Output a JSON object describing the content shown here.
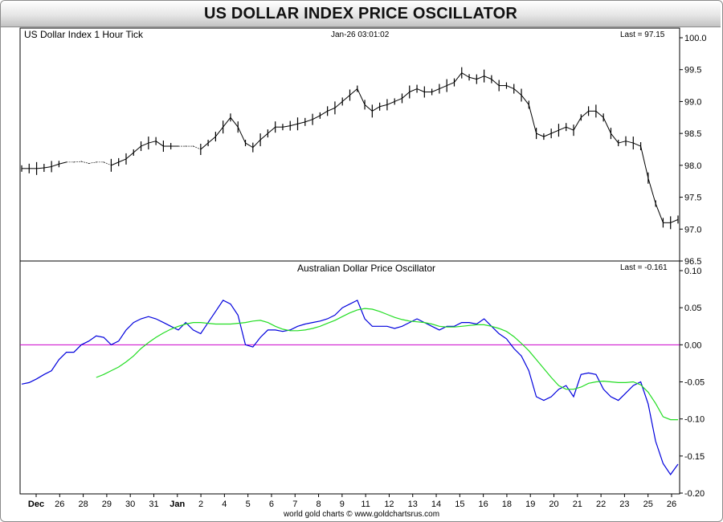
{
  "title": "US DOLLAR INDEX PRICE OSCILLATOR",
  "footer": "world gold charts © www.goldchartsrus.com",
  "colors": {
    "price_bars": "#000000",
    "oscillator": "#0000dd",
    "signal": "#22dd22",
    "zero_line": "#cc00cc",
    "panel_border": "#000000",
    "page_border": "#8a8a8a"
  },
  "chart_data": {
    "type": "line",
    "x_ticks": [
      "Dec",
      "26",
      "28",
      "29",
      "30",
      "31",
      "Jan",
      "2",
      "4",
      "5",
      "6",
      "7",
      "8",
      "9",
      "11",
      "12",
      "13",
      "14",
      "15",
      "16",
      "18",
      "19",
      "20",
      "21",
      "22",
      "23",
      "25",
      "26"
    ],
    "x_tick_bold": [
      "Dec",
      "Jan"
    ],
    "panels": [
      {
        "name": "price",
        "type": "bar",
        "label": "US Dollar Index 1 Hour Tick",
        "date_label": "Jan-26  03:01:02",
        "last_label": "Last = 97.15",
        "ylim": [
          96.5,
          100.0
        ],
        "yticks": [
          "100.0",
          "99.5",
          "99.0",
          "98.5",
          "98.0",
          "97.5",
          "97.0",
          "96.5"
        ],
        "series": [
          {
            "values": [
              97.95,
              97.95,
              97.95,
              97.96,
              97.98,
              98.02,
              98.05,
              98.05,
              98.06,
              98.03,
              98.05,
              98.05,
              98.0,
              98.05,
              98.1,
              98.2,
              98.3,
              98.35,
              98.38,
              98.3,
              98.3,
              98.3,
              98.3,
              98.3,
              98.25,
              98.35,
              98.45,
              98.6,
              98.75,
              98.6,
              98.35,
              98.28,
              98.4,
              98.5,
              98.6,
              98.6,
              98.62,
              98.65,
              98.68,
              98.72,
              98.78,
              98.85,
              98.9,
              99.0,
              99.1,
              99.2,
              98.95,
              98.85,
              98.92,
              98.95,
              99.0,
              99.05,
              99.15,
              99.2,
              99.15,
              99.15,
              99.2,
              99.25,
              99.3,
              99.45,
              99.38,
              99.35,
              99.4,
              99.35,
              99.25,
              99.25,
              99.2,
              99.1,
              98.95,
              98.5,
              98.45,
              98.5,
              98.55,
              98.6,
              98.55,
              98.75,
              98.85,
              98.85,
              98.75,
              98.5,
              98.35,
              98.38,
              98.35,
              98.3,
              97.8,
              97.4,
              97.1,
              97.1,
              97.15
            ]
          }
        ]
      },
      {
        "name": "oscillator",
        "type": "line",
        "label": "Australian Dollar Price Oscillator",
        "last_label": "Last = -0.161",
        "ylim": [
          -0.2,
          0.1
        ],
        "yticks": [
          "0.10",
          "0.05",
          "0.00",
          "-0.05",
          "-0.10",
          "-0.15",
          "-0.20"
        ],
        "series": [
          {
            "values": [
              -0.053,
              -0.051,
              -0.046,
              -0.04,
              -0.035,
              -0.02,
              -0.01,
              -0.01,
              0.0,
              0.005,
              0.012,
              0.01,
              0.0,
              0.005,
              0.02,
              0.03,
              0.035,
              0.038,
              0.035,
              0.03,
              0.025,
              0.02,
              0.03,
              0.02,
              0.015,
              0.03,
              0.045,
              0.06,
              0.055,
              0.04,
              0.0,
              -0.003,
              0.01,
              0.02,
              0.02,
              0.018,
              0.02,
              0.025,
              0.028,
              0.03,
              0.032,
              0.035,
              0.04,
              0.05,
              0.055,
              0.06,
              0.035,
              0.025,
              0.025,
              0.025,
              0.022,
              0.025,
              0.03,
              0.035,
              0.03,
              0.025,
              0.02,
              0.025,
              0.025,
              0.03,
              0.03,
              0.028,
              0.035,
              0.025,
              0.015,
              0.008,
              -0.005,
              -0.015,
              -0.035,
              -0.07,
              -0.075,
              -0.07,
              -0.06,
              -0.055,
              -0.07,
              -0.04,
              -0.038,
              -0.04,
              -0.06,
              -0.07,
              -0.075,
              -0.065,
              -0.055,
              -0.05,
              -0.08,
              -0.13,
              -0.16,
              -0.175,
              -0.161
            ]
          },
          {
            "values": [
              null,
              null,
              null,
              null,
              null,
              null,
              null,
              null,
              null,
              null,
              -0.044,
              -0.04,
              -0.035,
              -0.03,
              -0.023,
              -0.015,
              -0.005,
              0.003,
              0.01,
              0.016,
              0.021,
              0.025,
              0.028,
              0.03,
              0.03,
              0.029,
              0.028,
              0.028,
              0.028,
              0.029,
              0.03,
              0.032,
              0.033,
              0.03,
              0.025,
              0.021,
              0.019,
              0.019,
              0.02,
              0.022,
              0.025,
              0.029,
              0.033,
              0.038,
              0.043,
              0.047,
              0.049,
              0.048,
              0.045,
              0.041,
              0.037,
              0.034,
              0.032,
              0.031,
              0.03,
              0.028,
              0.025,
              0.024,
              0.024,
              0.025,
              0.026,
              0.027,
              0.027,
              0.025,
              0.022,
              0.018,
              0.011,
              0.002,
              -0.008,
              -0.02,
              -0.032,
              -0.044,
              -0.055,
              -0.06,
              -0.06,
              -0.057,
              -0.052,
              -0.05,
              -0.049,
              -0.05,
              -0.051,
              -0.051,
              -0.05,
              -0.054,
              -0.064,
              -0.079,
              -0.097,
              -0.101,
              -0.101
            ]
          }
        ]
      }
    ]
  }
}
